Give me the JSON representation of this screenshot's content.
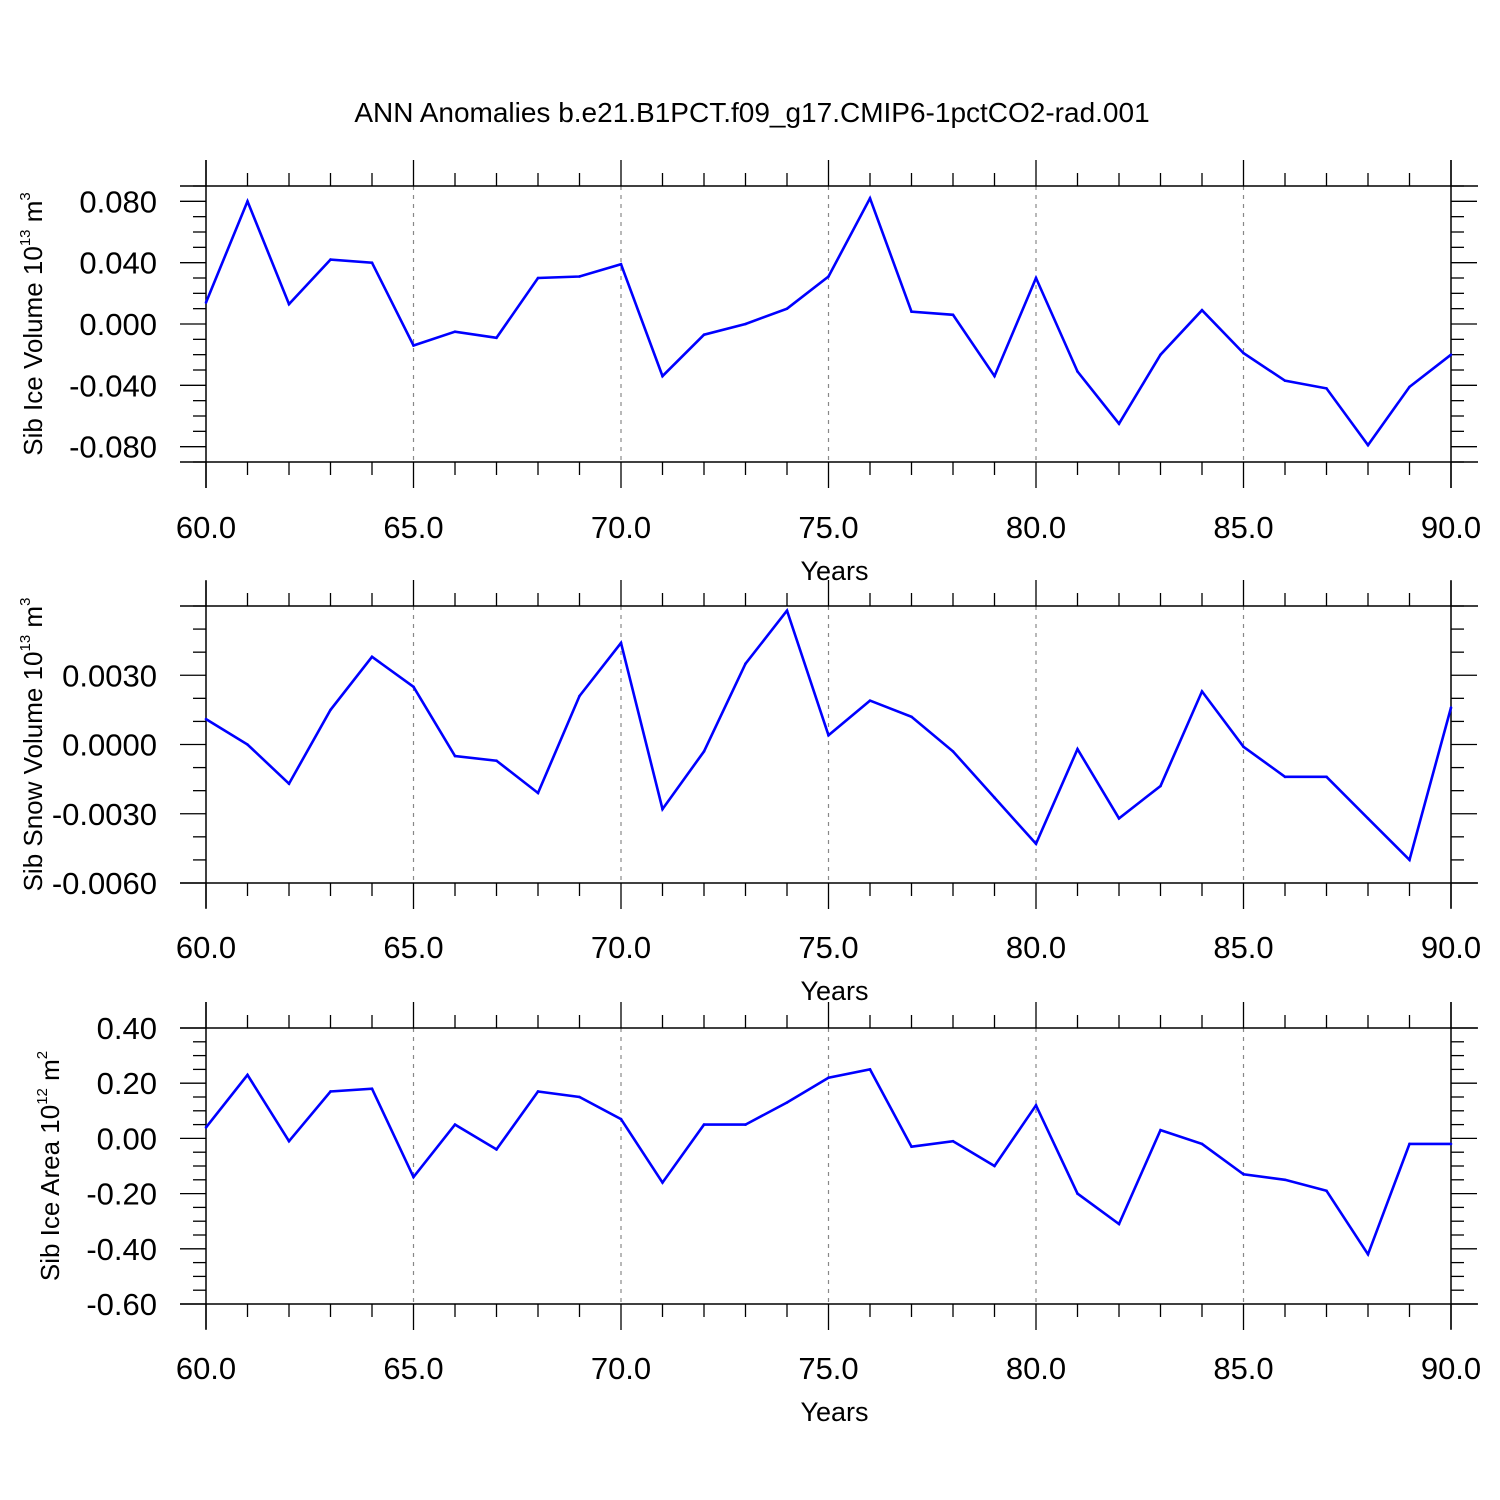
{
  "title": "ANN Anomalies b.e21.B1PCT.f09_g17.CMIP6-1pctCO2-rad.001",
  "colors": {
    "line": "#0000ff",
    "axis": "#000000",
    "grid": "#888888"
  },
  "chart_data": [
    {
      "type": "line",
      "ylabel": {
        "text": "Sib Ice Volume 10",
        "exp": "13",
        "unit": " m",
        "unit_exp": "3"
      },
      "xlabel": "Years",
      "xlim": [
        60,
        90
      ],
      "ylim": [
        -0.09,
        0.09
      ],
      "xticks": [
        "60.0",
        "65.0",
        "70.0",
        "75.0",
        "80.0",
        "85.0",
        "90.0"
      ],
      "xtick_values": [
        60,
        65,
        70,
        75,
        80,
        85,
        90
      ],
      "yticks": [
        "0.080",
        "0.040",
        "0.000",
        "-0.040",
        "-0.080"
      ],
      "ytick_values": [
        0.08,
        0.04,
        0.0,
        -0.04,
        -0.08
      ],
      "yminor_step": 0.01,
      "grid": "vertical dashed at major x ticks",
      "x": [
        60,
        61,
        62,
        63,
        64,
        65,
        66,
        67,
        68,
        69,
        70,
        71,
        72,
        73,
        74,
        75,
        76,
        77,
        78,
        79,
        80,
        81,
        82,
        83,
        84,
        85,
        86,
        87,
        88,
        89,
        90
      ],
      "values": [
        0.014,
        0.08,
        0.013,
        0.042,
        0.04,
        -0.014,
        -0.005,
        -0.009,
        0.03,
        0.031,
        0.039,
        -0.034,
        -0.007,
        0.0,
        0.01,
        0.031,
        0.082,
        0.008,
        0.006,
        -0.034,
        0.03,
        -0.031,
        -0.065,
        -0.02,
        0.009,
        -0.019,
        -0.037,
        -0.042,
        -0.079,
        -0.041,
        -0.02
      ]
    },
    {
      "type": "line",
      "ylabel": {
        "text": "Sib Snow Volume 10",
        "exp": "13",
        "unit": " m",
        "unit_exp": "3"
      },
      "xlabel": "Years",
      "xlim": [
        60,
        90
      ],
      "ylim": [
        -0.006,
        0.006
      ],
      "xticks": [
        "60.0",
        "65.0",
        "70.0",
        "75.0",
        "80.0",
        "85.0",
        "90.0"
      ],
      "xtick_values": [
        60,
        65,
        70,
        75,
        80,
        85,
        90
      ],
      "yticks": [
        "0.0030",
        "0.0000",
        "-0.0030",
        "-0.0060"
      ],
      "ytick_values": [
        0.003,
        0.0,
        -0.003,
        -0.006
      ],
      "yminor_step": 0.001,
      "grid": "vertical dashed at major x ticks",
      "x": [
        60,
        61,
        62,
        63,
        64,
        65,
        66,
        67,
        68,
        69,
        70,
        71,
        72,
        73,
        74,
        75,
        76,
        77,
        78,
        79,
        80,
        81,
        82,
        83,
        84,
        85,
        86,
        87,
        88,
        89,
        90
      ],
      "values": [
        0.0011,
        0.0,
        -0.0017,
        0.0015,
        0.0038,
        0.0025,
        -0.0005,
        -0.0007,
        -0.0021,
        0.0021,
        0.0044,
        -0.0028,
        -0.0003,
        0.0035,
        0.0058,
        0.0004,
        0.0019,
        0.0012,
        -0.0003,
        -0.0023,
        -0.0043,
        -0.0002,
        -0.0032,
        -0.0018,
        0.0023,
        -0.0001,
        -0.0014,
        -0.0014,
        -0.0032,
        -0.005,
        0.0016
      ]
    },
    {
      "type": "line",
      "ylabel": {
        "text": "Sib Ice Area 10",
        "exp": "12",
        "unit": " m",
        "unit_exp": "2"
      },
      "xlabel": "Years",
      "xlim": [
        60,
        90
      ],
      "ylim": [
        -0.6,
        0.4
      ],
      "xticks": [
        "60.0",
        "65.0",
        "70.0",
        "75.0",
        "80.0",
        "85.0",
        "90.0"
      ],
      "xtick_values": [
        60,
        65,
        70,
        75,
        80,
        85,
        90
      ],
      "yticks": [
        "0.40",
        "0.20",
        "0.00",
        "-0.20",
        "-0.40",
        "-0.60"
      ],
      "ytick_values": [
        0.4,
        0.2,
        0.0,
        -0.2,
        -0.4,
        -0.6
      ],
      "yminor_step": 0.05,
      "grid": "vertical dashed at major x ticks",
      "x": [
        60,
        61,
        62,
        63,
        64,
        65,
        66,
        67,
        68,
        69,
        70,
        71,
        72,
        73,
        74,
        75,
        76,
        77,
        78,
        79,
        80,
        81,
        82,
        83,
        84,
        85,
        86,
        87,
        88,
        89,
        90
      ],
      "values": [
        0.04,
        0.23,
        -0.01,
        0.17,
        0.18,
        -0.14,
        0.05,
        -0.04,
        0.17,
        0.15,
        0.07,
        -0.16,
        0.05,
        0.05,
        0.13,
        0.22,
        0.25,
        -0.03,
        -0.01,
        -0.1,
        0.12,
        -0.2,
        -0.31,
        0.03,
        -0.02,
        -0.13,
        -0.15,
        -0.19,
        -0.42,
        -0.02,
        -0.02
      ]
    }
  ]
}
